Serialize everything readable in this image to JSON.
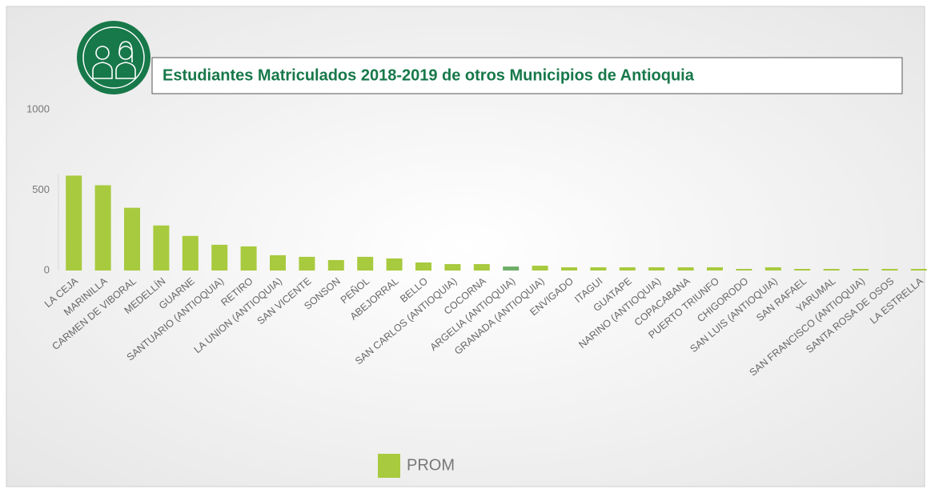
{
  "chart_data": {
    "type": "bar",
    "title": "Estudiantes Matriculados 2018-2019 de otros Municipios de Antioquia",
    "categories": [
      "LA CEJA",
      "MARINILLA",
      "CARMEN DE VIBORAL",
      "MEDELLÍN",
      "GUARNE",
      "SANTUARIO (ANTIOQUIA)",
      "RETIRO",
      "LA UNION (ANTIOQUIA)",
      "SAN VICENTE",
      "SONSON",
      "PEÑOL",
      "ABEJORRAL",
      "BELLO",
      "SAN CARLOS (ANTIOQUIA)",
      "COCORNA",
      "ARGELIA (ANTIOQUIA)",
      "GRANADA (ANTIOQUIA)",
      "ENVIGADO",
      "ITAGUI",
      "GUATAPE",
      "NARINO (ANTIOQUIA)",
      "COPACABANA",
      "PUERTO TRIUNFO",
      "CHIGORODO",
      "SAN LUIS (ANTIOQUIA)",
      "SAN RAFAEL",
      "YARUMAL",
      "SAN FRANCISCO (ANTIOQUIA)",
      "SANTA ROSA DE OSOS",
      "LA ESTRELLA"
    ],
    "series": [
      {
        "name": "PROM",
        "color": "#a8ca3e",
        "colors": [
          "#a8ca3e",
          "#a8ca3e",
          "#a8ca3e",
          "#a8ca3e",
          "#a8ca3e",
          "#a8ca3e",
          "#a8ca3e",
          "#a8ca3e",
          "#a8ca3e",
          "#a8ca3e",
          "#a8ca3e",
          "#a8ca3e",
          "#a8ca3e",
          "#a8ca3e",
          "#a8ca3e",
          "#6fae6a",
          "#a8ca3e",
          "#a8ca3e",
          "#a8ca3e",
          "#a8ca3e",
          "#a8ca3e",
          "#a8ca3e",
          "#a8ca3e",
          "#a8ca3e",
          "#a8ca3e",
          "#a8ca3e",
          "#a8ca3e",
          "#a8ca3e",
          "#a8ca3e",
          "#a8ca3e"
        ],
        "values": [
          590,
          530,
          390,
          280,
          215,
          160,
          150,
          95,
          85,
          65,
          85,
          75,
          50,
          40,
          40,
          25,
          30,
          20,
          20,
          20,
          20,
          20,
          20,
          10,
          20,
          10,
          10,
          10,
          10,
          10
        ]
      }
    ],
    "ylim": [
      0,
      1000
    ],
    "yticks": [
      0,
      500,
      1000
    ],
    "legend": "bottom"
  }
}
